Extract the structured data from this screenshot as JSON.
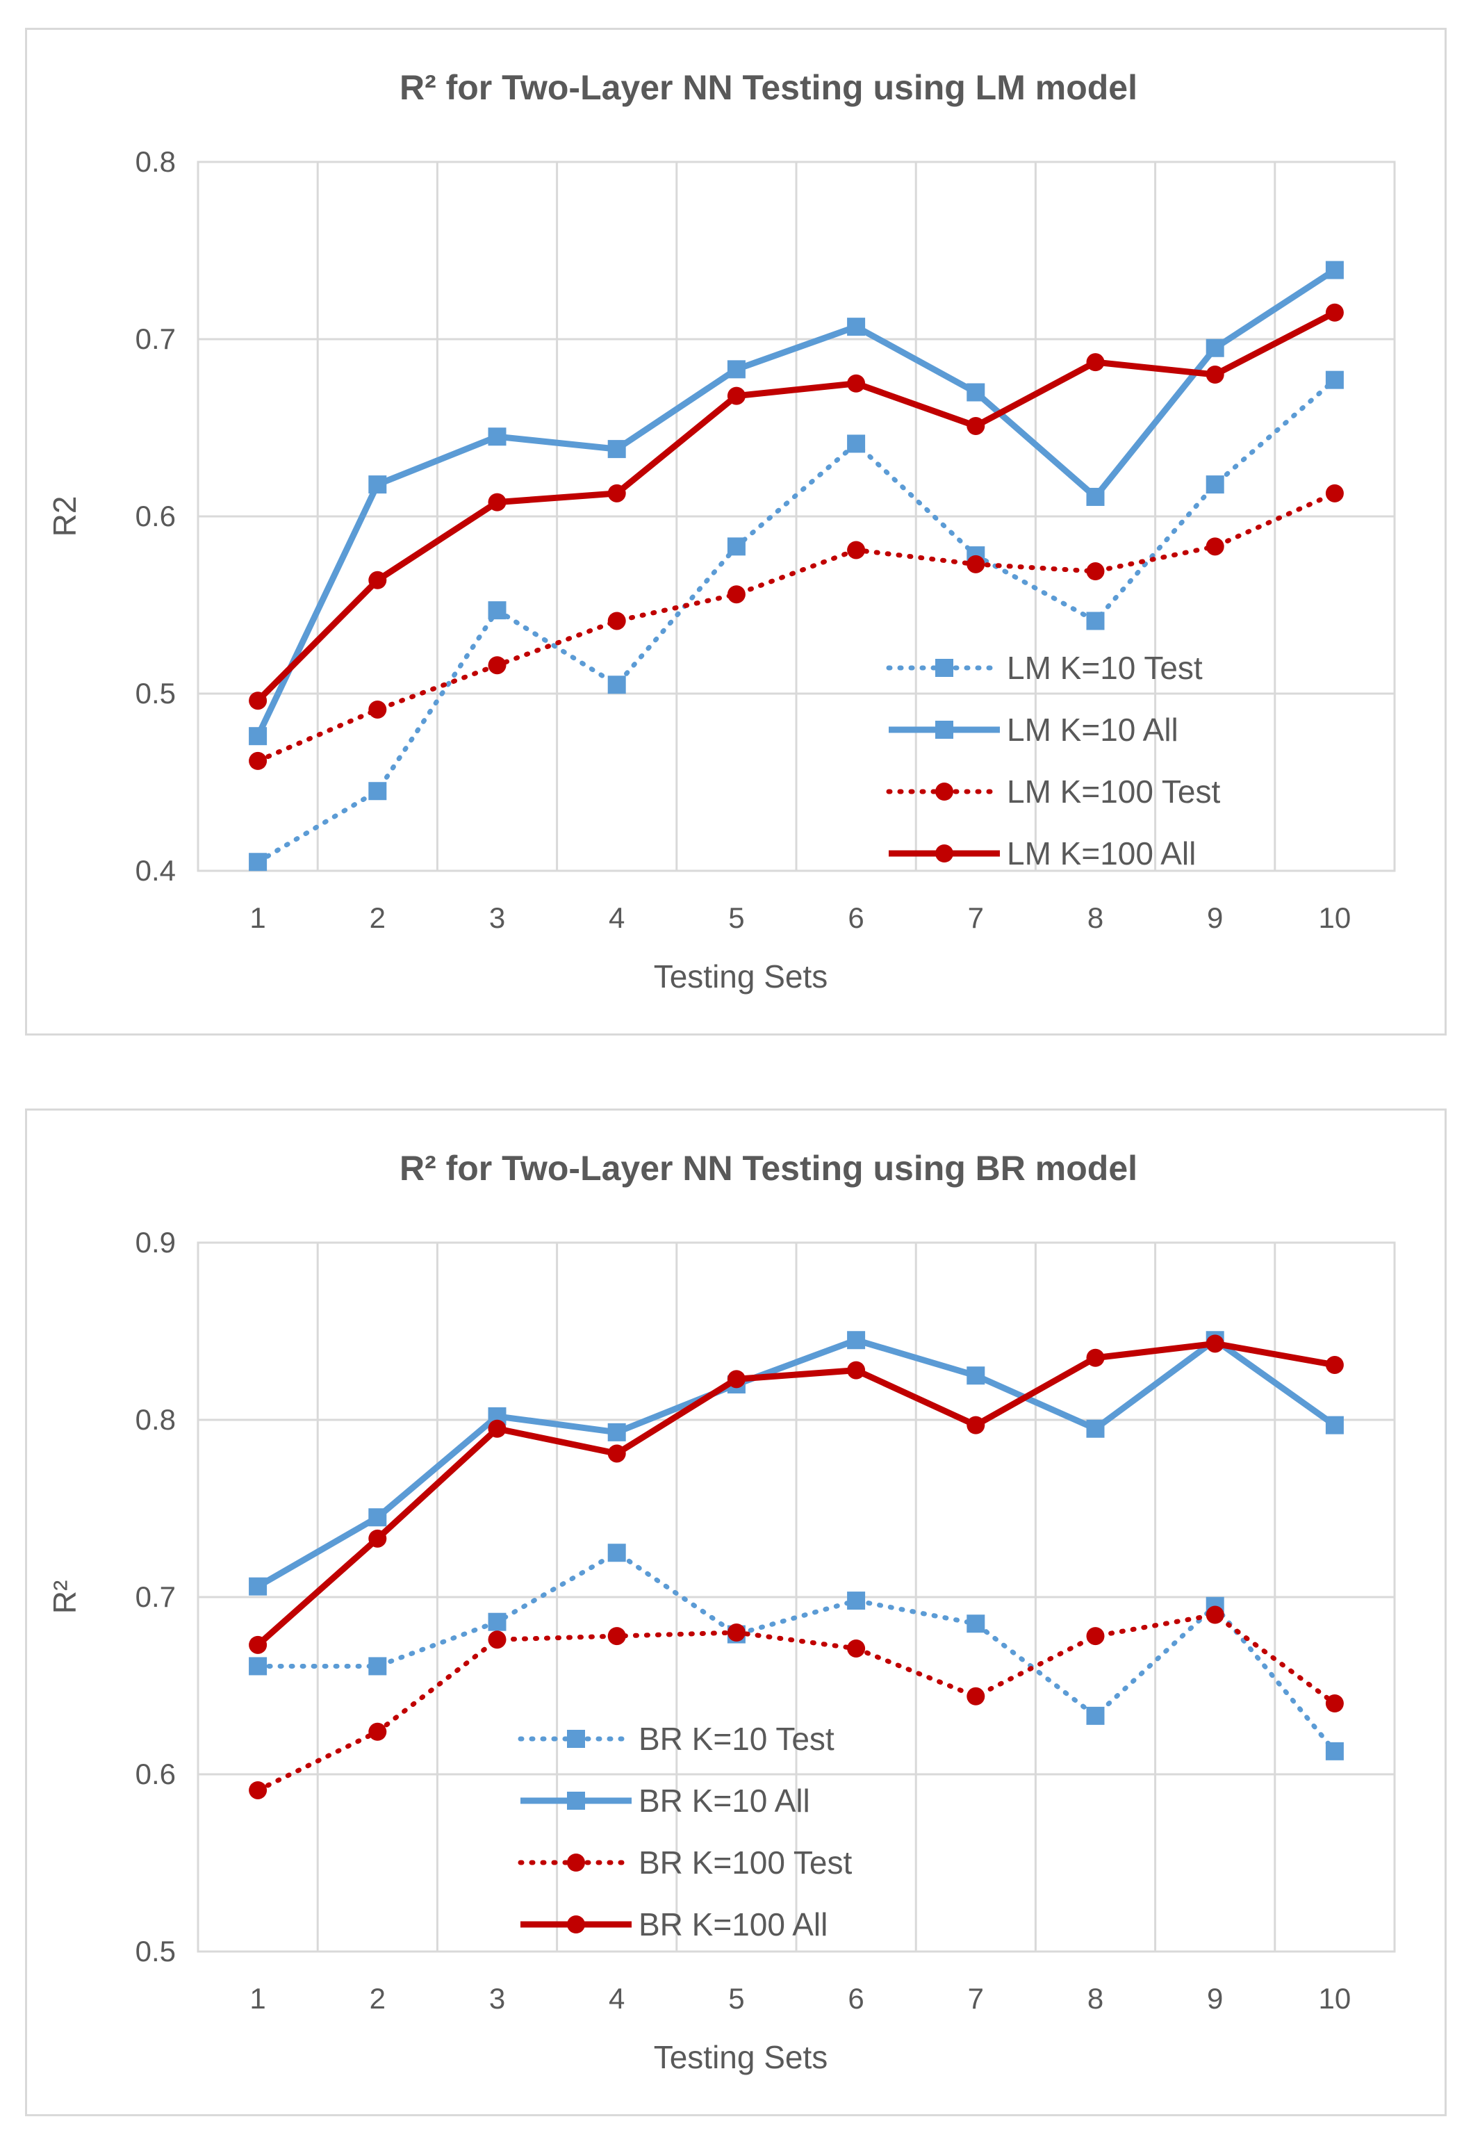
{
  "chart_data": [
    {
      "type": "line",
      "title": "R² for Two-Layer NN Testing using LM model",
      "xlabel": "Testing Sets",
      "ylabel": "R2",
      "ylim": [
        0.4,
        0.8
      ],
      "yticks": [
        "0.4",
        "0.5",
        "0.6",
        "0.7",
        "0.8"
      ],
      "categories": [
        "1",
        "2",
        "3",
        "4",
        "5",
        "6",
        "7",
        "8",
        "9",
        "10"
      ],
      "grid": true,
      "legend_position": "bottom-right",
      "series": [
        {
          "name": "LM K=10 Test",
          "color": "#5b9bd5",
          "style": "dotted",
          "marker": "square",
          "values": [
            0.405,
            0.445,
            0.547,
            0.505,
            0.583,
            0.641,
            0.578,
            0.541,
            0.618,
            0.677
          ]
        },
        {
          "name": "LM K=10 All",
          "color": "#5b9bd5",
          "style": "solid",
          "marker": "square",
          "values": [
            0.476,
            0.618,
            0.645,
            0.638,
            0.683,
            0.707,
            0.67,
            0.611,
            0.695,
            0.739
          ]
        },
        {
          "name": "LM K=100 Test",
          "color": "#c00000",
          "style": "dotted",
          "marker": "circle",
          "values": [
            0.462,
            0.491,
            0.516,
            0.541,
            0.556,
            0.581,
            0.573,
            0.569,
            0.583,
            0.613
          ]
        },
        {
          "name": "LM K=100 All",
          "color": "#c00000",
          "style": "solid",
          "marker": "circle",
          "values": [
            0.496,
            0.564,
            0.608,
            0.613,
            0.668,
            0.675,
            0.651,
            0.687,
            0.68,
            0.715
          ]
        }
      ]
    },
    {
      "type": "line",
      "title": "R² for Two-Layer NN Testing using BR model",
      "xlabel": "Testing Sets",
      "ylabel": "R²",
      "ylim": [
        0.5,
        0.9
      ],
      "yticks": [
        "0.5",
        "0.6",
        "0.7",
        "0.8",
        "0.9"
      ],
      "categories": [
        "1",
        "2",
        "3",
        "4",
        "5",
        "6",
        "7",
        "8",
        "9",
        "10"
      ],
      "grid": true,
      "legend_position": "bottom-center",
      "series": [
        {
          "name": "BR K=10 Test",
          "color": "#5b9bd5",
          "style": "dotted",
          "marker": "square",
          "values": [
            0.661,
            0.661,
            0.686,
            0.725,
            0.679,
            0.698,
            0.685,
            0.633,
            0.695,
            0.613
          ]
        },
        {
          "name": "BR K=10 All",
          "color": "#5b9bd5",
          "style": "solid",
          "marker": "square",
          "values": [
            0.706,
            0.745,
            0.802,
            0.793,
            0.82,
            0.845,
            0.825,
            0.795,
            0.845,
            0.797
          ]
        },
        {
          "name": "BR K=100 Test",
          "color": "#c00000",
          "style": "dotted",
          "marker": "circle",
          "values": [
            0.591,
            0.624,
            0.676,
            0.678,
            0.68,
            0.671,
            0.644,
            0.678,
            0.69,
            0.64
          ]
        },
        {
          "name": "BR K=100 All",
          "color": "#c00000",
          "style": "solid",
          "marker": "circle",
          "values": [
            0.673,
            0.733,
            0.795,
            0.781,
            0.823,
            0.828,
            0.797,
            0.835,
            0.843,
            0.831
          ]
        }
      ]
    }
  ]
}
